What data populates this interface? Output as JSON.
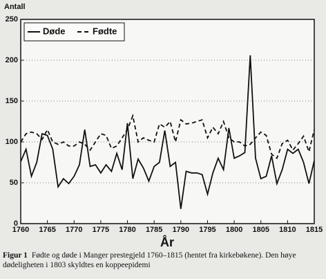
{
  "chart_data": {
    "type": "line",
    "y_axis_label": "Antall",
    "x_axis_label": "År",
    "figure_label": "Figur 1",
    "caption": "Fødte og døde i Manger prestegjeld 1760–1815 (hentet fra kirkebøkene). Den høye dødeligheten i 1803 skyldtes en koppeepidemi",
    "x": [
      1760,
      1761,
      1762,
      1763,
      1764,
      1765,
      1766,
      1767,
      1768,
      1769,
      1770,
      1771,
      1772,
      1773,
      1774,
      1775,
      1776,
      1777,
      1778,
      1779,
      1780,
      1781,
      1782,
      1783,
      1784,
      1785,
      1786,
      1787,
      1788,
      1789,
      1790,
      1791,
      1792,
      1793,
      1794,
      1795,
      1796,
      1797,
      1798,
      1799,
      1800,
      1801,
      1802,
      1803,
      1804,
      1805,
      1806,
      1807,
      1808,
      1809,
      1810,
      1811,
      1812,
      1813,
      1814,
      1815
    ],
    "series": [
      {
        "name": "Døde",
        "color": "#111111",
        "line_style": "solid",
        "values": [
          76,
          91,
          58,
          75,
          110,
          108,
          91,
          45,
          55,
          49,
          58,
          72,
          115,
          70,
          72,
          62,
          72,
          64,
          86,
          66,
          123,
          55,
          79,
          68,
          52,
          70,
          75,
          114,
          70,
          75,
          18,
          64,
          62,
          62,
          60,
          36,
          62,
          80,
          66,
          117,
          80,
          83,
          87,
          206,
          80,
          55,
          58,
          83,
          49,
          66,
          91,
          86,
          91,
          75,
          49,
          77
        ]
      },
      {
        "name": "Fødte",
        "color": "#111111",
        "line_style": "dashed",
        "values": [
          100,
          110,
          112,
          110,
          103,
          115,
          100,
          97,
          100,
          95,
          95,
          100,
          97,
          90,
          100,
          110,
          108,
          92,
          95,
          105,
          115,
          132,
          100,
          105,
          102,
          100,
          122,
          118,
          125,
          100,
          127,
          122,
          123,
          125,
          127,
          105,
          118,
          110,
          125,
          105,
          100,
          100,
          95,
          97,
          105,
          112,
          108,
          85,
          80,
          98,
          102,
          90,
          98,
          107,
          88,
          115
        ]
      }
    ],
    "xlim": [
      1760,
      1815
    ],
    "xticks": [
      1760,
      1765,
      1770,
      1775,
      1780,
      1785,
      1790,
      1795,
      1800,
      1805,
      1810,
      1815
    ],
    "ylim": [
      0,
      250
    ],
    "yticks": [
      0,
      50,
      100,
      150,
      200,
      250
    ],
    "grid": true
  }
}
